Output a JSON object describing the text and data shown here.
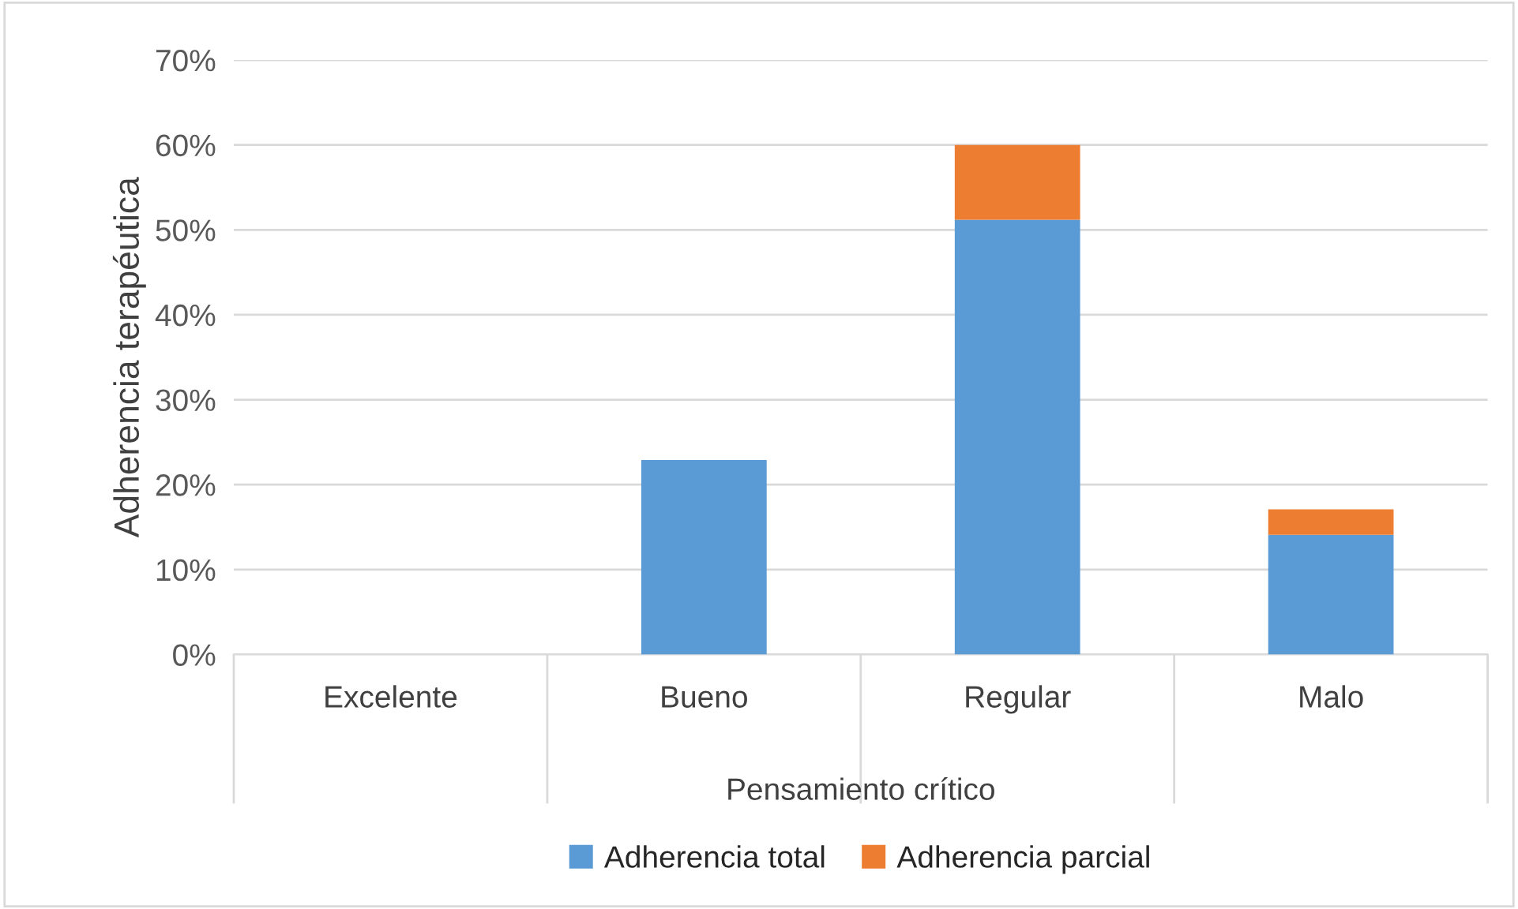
{
  "chart_data": {
    "type": "bar",
    "stacked": true,
    "xlabel": "Pensamiento crítico",
    "ylabel": "Adherencia terapéutica",
    "categories": [
      "Excelente",
      "Bueno",
      "Regular",
      "Malo"
    ],
    "series": [
      {
        "name": "Adherencia total",
        "color": "#5b9bd5",
        "values": [
          null,
          22.9,
          51.2,
          14.1
        ]
      },
      {
        "name": "Adherencia parcial",
        "color": "#ed7d31",
        "values": [
          null,
          null,
          8.8,
          3.0
        ]
      }
    ],
    "ylim": [
      0,
      70
    ],
    "yticks": [
      {
        "value": 0,
        "label": "0%"
      },
      {
        "value": 10,
        "label": "10%"
      },
      {
        "value": 20,
        "label": "20%"
      },
      {
        "value": 30,
        "label": "30%"
      },
      {
        "value": 40,
        "label": "40%"
      },
      {
        "value": 50,
        "label": "50%"
      },
      {
        "value": 60,
        "label": "60%"
      },
      {
        "value": 70,
        "label": "70%"
      }
    ],
    "grid": "y",
    "legend": "bottom"
  }
}
